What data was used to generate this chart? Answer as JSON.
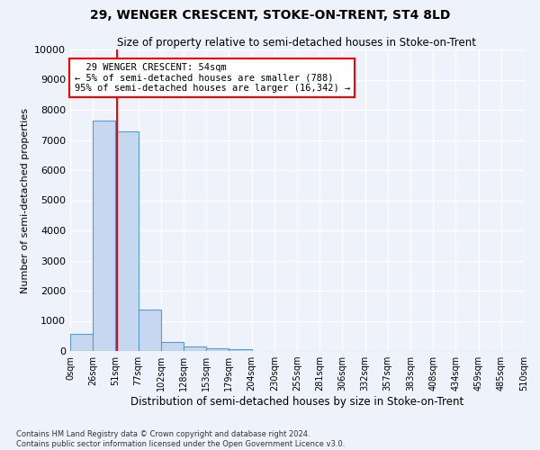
{
  "title": "29, WENGER CRESCENT, STOKE-ON-TRENT, ST4 8LD",
  "subtitle": "Size of property relative to semi-detached houses in Stoke-on-Trent",
  "xlabel": "Distribution of semi-detached houses by size in Stoke-on-Trent",
  "ylabel": "Number of semi-detached properties",
  "footer_line1": "Contains HM Land Registry data © Crown copyright and database right 2024.",
  "footer_line2": "Contains public sector information licensed under the Open Government Licence v3.0.",
  "bar_values": [
    560,
    7650,
    7280,
    1360,
    310,
    150,
    100,
    60,
    0,
    0,
    0,
    0,
    0,
    0,
    0,
    0,
    0,
    0,
    0,
    0
  ],
  "bar_color": "#c5d8f0",
  "bar_edge_color": "#5b9bd5",
  "x_tick_labels": [
    "0sqm",
    "26sqm",
    "51sqm",
    "77sqm",
    "102sqm",
    "128sqm",
    "153sqm",
    "179sqm",
    "204sqm",
    "230sqm",
    "255sqm",
    "281sqm",
    "306sqm",
    "332sqm",
    "357sqm",
    "383sqm",
    "408sqm",
    "434sqm",
    "459sqm",
    "485sqm",
    "510sqm"
  ],
  "ylim": [
    0,
    10000
  ],
  "yticks": [
    0,
    1000,
    2000,
    3000,
    4000,
    5000,
    6000,
    7000,
    8000,
    9000,
    10000
  ],
  "property_label": "29 WENGER CRESCENT: 54sqm",
  "pct_smaller": 5,
  "count_smaller": 788,
  "pct_larger": 95,
  "count_larger": 16342,
  "bg_color": "#eef3fb",
  "grid_color": "#ffffff",
  "bar_width": 1.0,
  "red_line_x": 2.08
}
